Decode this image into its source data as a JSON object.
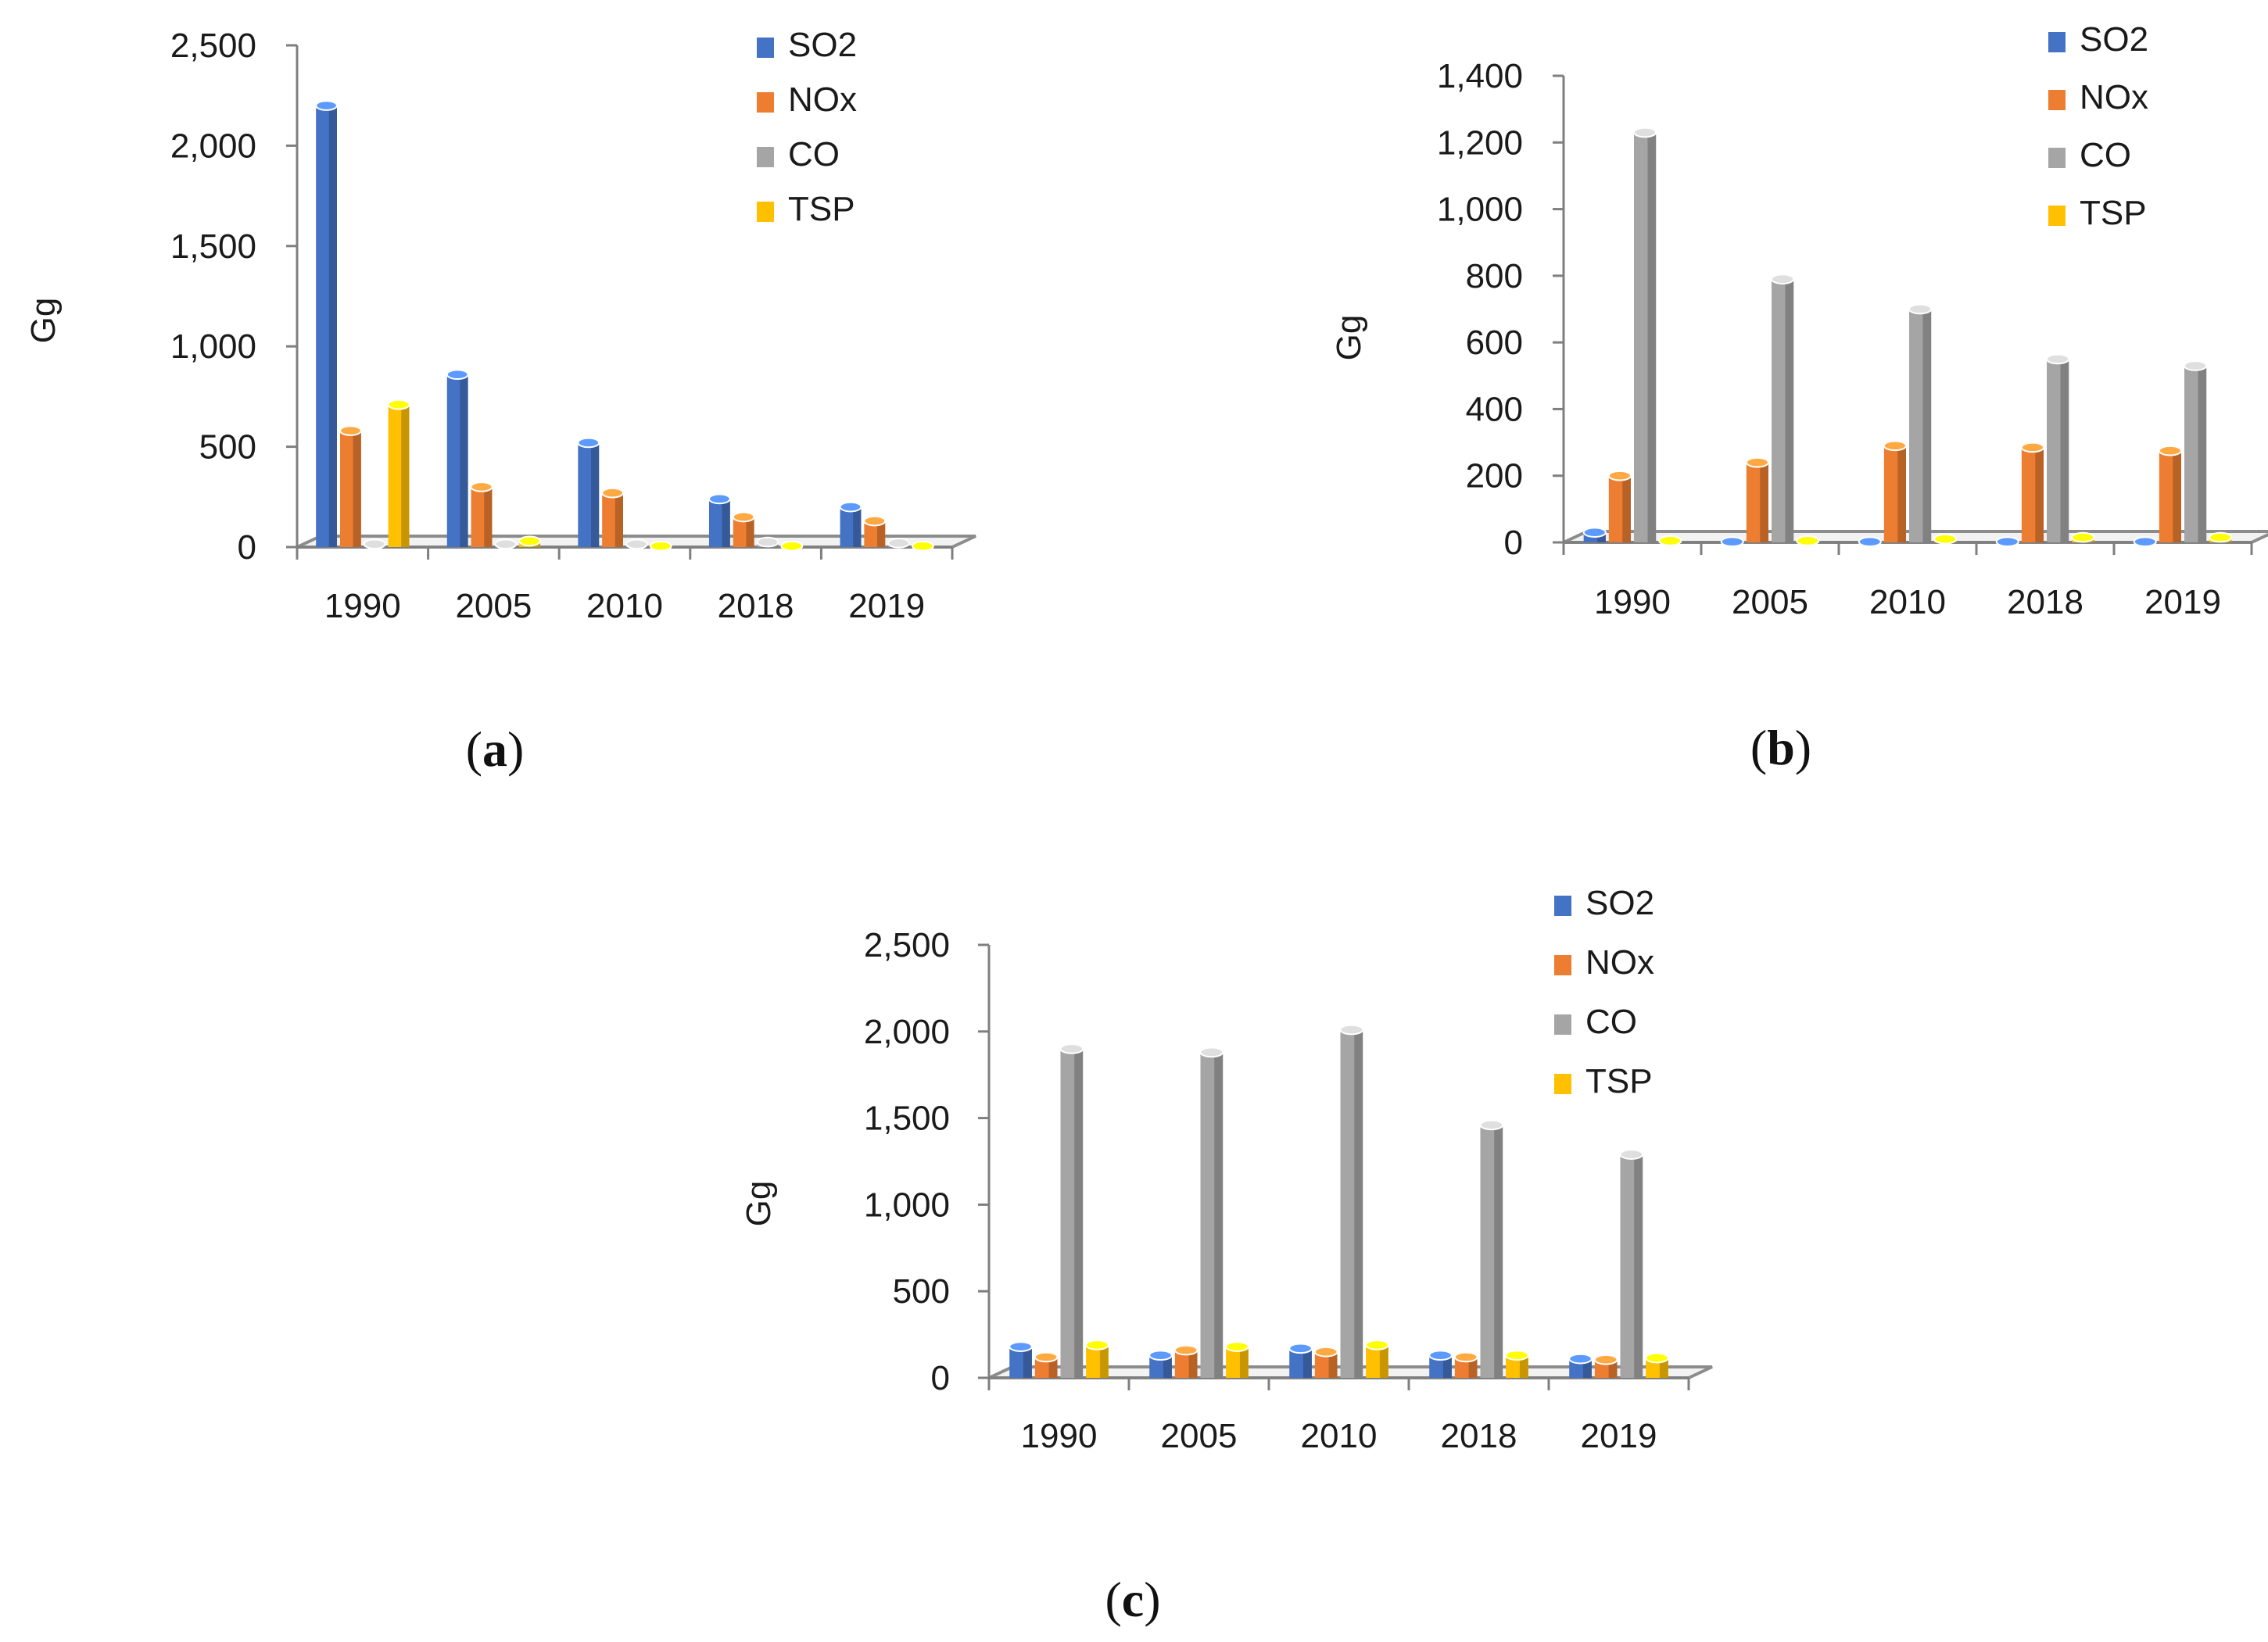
{
  "colors": {
    "SO2": "#4472C4",
    "NOx": "#ED7D31",
    "CO": "#A5A5A5",
    "TSP": "#FFC000",
    "axis": "#7f7f7f",
    "floor": "#8c8c8c"
  },
  "chart_data": [
    {
      "type": "bar",
      "panel_label": "a",
      "ylabel": "Gg",
      "categories": [
        "1990",
        "2005",
        "2010",
        "2018",
        "2019"
      ],
      "ylim": [
        0,
        2500
      ],
      "yticks": [
        "0",
        "500",
        "1,000",
        "1,500",
        "2,000",
        "2,500"
      ],
      "ytick_values": [
        0,
        500,
        1000,
        1500,
        2000,
        2500
      ],
      "legend_position": "top-right",
      "series": [
        {
          "name": "SO2",
          "values": [
            2200,
            860,
            520,
            240,
            200
          ]
        },
        {
          "name": "NOx",
          "values": [
            580,
            300,
            270,
            150,
            130
          ]
        },
        {
          "name": "CO",
          "values": [
            15,
            15,
            15,
            25,
            20
          ]
        },
        {
          "name": "TSP",
          "values": [
            710,
            30,
            5,
            5,
            5
          ]
        }
      ]
    },
    {
      "type": "bar",
      "panel_label": "b",
      "ylabel": "Gg",
      "categories": [
        "1990",
        "2005",
        "2010",
        "2018",
        "2019"
      ],
      "ylim": [
        0,
        1400
      ],
      "yticks": [
        "0",
        "200",
        "400",
        "600",
        "800",
        "1,000",
        "1,200",
        "1,400"
      ],
      "ytick_values": [
        0,
        200,
        400,
        600,
        800,
        1000,
        1200,
        1400
      ],
      "legend_position": "top-right",
      "series": [
        {
          "name": "SO2",
          "values": [
            30,
            2,
            2,
            2,
            2
          ]
        },
        {
          "name": "NOx",
          "values": [
            200,
            240,
            290,
            285,
            275
          ]
        },
        {
          "name": "CO",
          "values": [
            1230,
            790,
            700,
            550,
            530
          ]
        },
        {
          "name": "TSP",
          "values": [
            5,
            5,
            10,
            15,
            15
          ]
        }
      ]
    },
    {
      "type": "bar",
      "panel_label": "c",
      "ylabel": "Gg",
      "categories": [
        "1990",
        "2005",
        "2010",
        "2018",
        "2019"
      ],
      "ylim": [
        0,
        2500
      ],
      "yticks": [
        "0",
        "500",
        "1,000",
        "1,500",
        "2,000",
        "2,500"
      ],
      "ytick_values": [
        0,
        500,
        1000,
        1500,
        2000,
        2500
      ],
      "legend_position": "top-right",
      "series": [
        {
          "name": "SO2",
          "values": [
            180,
            130,
            170,
            130,
            110
          ]
        },
        {
          "name": "NOx",
          "values": [
            120,
            160,
            150,
            120,
            105
          ]
        },
        {
          "name": "CO",
          "values": [
            1900,
            1880,
            2010,
            1460,
            1290
          ]
        },
        {
          "name": "TSP",
          "values": [
            190,
            180,
            190,
            130,
            115
          ]
        }
      ]
    }
  ]
}
